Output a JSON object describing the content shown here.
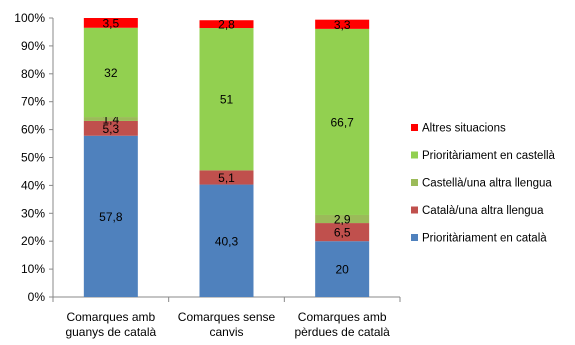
{
  "chart_data": {
    "type": "bar",
    "stacked": true,
    "percent": true,
    "categories": [
      [
        "Comarques amb",
        "guanys de català"
      ],
      [
        "Comarques sense",
        "canvis"
      ],
      [
        "Comarques amb",
        "pèrdues de català"
      ]
    ],
    "ylim": [
      0,
      100
    ],
    "yticks": [
      "0%",
      "10%",
      "20%",
      "30%",
      "40%",
      "50%",
      "60%",
      "70%",
      "80%",
      "90%",
      "100%"
    ],
    "grid": false,
    "legend_position": "right",
    "series": [
      {
        "name": "Prioritàriament en català",
        "color": "#4F81BD",
        "values": [
          57.8,
          40.3,
          20
        ],
        "labels": [
          "57,8",
          "40,3",
          "20"
        ]
      },
      {
        "name": "Català/una altra llengua",
        "color": "#C0504D",
        "values": [
          5.3,
          5.1,
          6.5
        ],
        "labels": [
          "5,3",
          "5,1",
          "6,5"
        ]
      },
      {
        "name": "Castellà/una altra llengua",
        "color": "#9BBB59",
        "values": [
          1.4,
          0,
          2.9
        ],
        "labels": [
          "1,4",
          "",
          "2,9"
        ]
      },
      {
        "name": "Prioritàriament en castellà",
        "color": "#92D050",
        "values": [
          32,
          51,
          66.7
        ],
        "labels": [
          "32",
          "51",
          "66,7"
        ]
      },
      {
        "name": "Altres situacions",
        "color": "#FF0000",
        "values": [
          3.5,
          2.8,
          3.3
        ],
        "labels": [
          "3,5",
          "2,8",
          "3,3"
        ]
      }
    ],
    "legend_order": [
      4,
      3,
      2,
      1,
      0
    ]
  }
}
